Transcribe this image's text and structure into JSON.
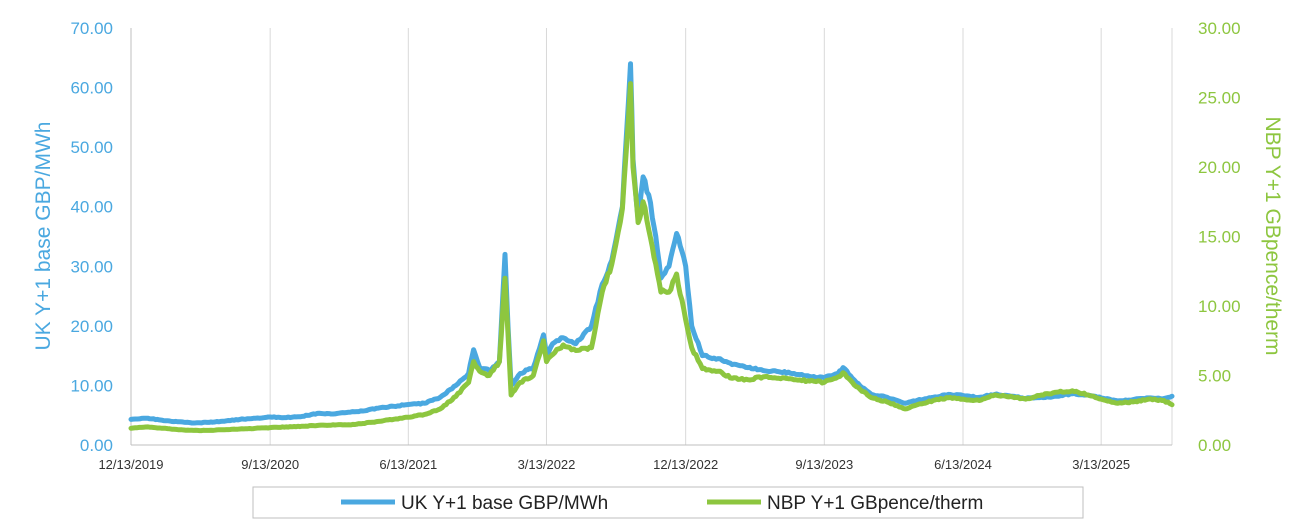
{
  "chart_data": {
    "type": "line",
    "title": "",
    "xlabel": "",
    "grid": "vertical gridlines only",
    "legend_position": "bottom",
    "x_tick_labels": [
      "12/13/2019",
      "9/13/2020",
      "6/13/2021",
      "3/13/2022",
      "12/13/2022",
      "9/13/2023",
      "6/13/2024",
      "3/13/2025"
    ],
    "x_range": [
      "12/13/2019",
      "7/31/2025"
    ],
    "ylabel_left": "UK Y+1 base GBP/MWh",
    "ylabel_right": "NBP Y+1 GBpence/therm",
    "ylim_left": [
      0,
      70
    ],
    "ylim_right": [
      0,
      30
    ],
    "yticks_left": [
      "0.00",
      "10.00",
      "20.00",
      "30.00",
      "40.00",
      "50.00",
      "60.00",
      "70.00"
    ],
    "yticks_right": [
      "0.00",
      "5.00",
      "10.00",
      "15.00",
      "20.00",
      "25.00",
      "30.00"
    ],
    "series": [
      {
        "name": "UK Y+1 base GBP/MWh",
        "axis": "left",
        "color": "#4aa8e0",
        "points": [
          [
            "2019-12-13",
            4.3
          ],
          [
            "2020-01-15",
            4.5
          ],
          [
            "2020-02-15",
            4.1
          ],
          [
            "2020-03-15",
            3.9
          ],
          [
            "2020-04-15",
            3.7
          ],
          [
            "2020-05-15",
            3.8
          ],
          [
            "2020-06-15",
            4.0
          ],
          [
            "2020-07-15",
            4.3
          ],
          [
            "2020-08-15",
            4.5
          ],
          [
            "2020-09-13",
            4.7
          ],
          [
            "2020-10-15",
            4.6
          ],
          [
            "2020-11-15",
            4.8
          ],
          [
            "2020-12-15",
            5.3
          ],
          [
            "2021-01-15",
            5.2
          ],
          [
            "2021-02-15",
            5.5
          ],
          [
            "2021-03-15",
            5.7
          ],
          [
            "2021-04-15",
            6.2
          ],
          [
            "2021-05-15",
            6.5
          ],
          [
            "2021-06-13",
            6.8
          ],
          [
            "2021-07-15",
            7.0
          ],
          [
            "2021-08-15",
            8.0
          ],
          [
            "2021-09-15",
            10.0
          ],
          [
            "2021-10-10",
            12.0
          ],
          [
            "2021-10-20",
            16.0
          ],
          [
            "2021-11-01",
            13.0
          ],
          [
            "2021-11-20",
            12.5
          ],
          [
            "2021-12-10",
            14.0
          ],
          [
            "2021-12-21",
            32.0
          ],
          [
            "2021-12-27",
            20.0
          ],
          [
            "2022-01-02",
            10.0
          ],
          [
            "2022-01-20",
            12.0
          ],
          [
            "2022-02-15",
            13.0
          ],
          [
            "2022-03-07",
            18.5
          ],
          [
            "2022-03-13",
            15.0
          ],
          [
            "2022-03-25",
            17.0
          ],
          [
            "2022-04-15",
            18.0
          ],
          [
            "2022-05-10",
            17.0
          ],
          [
            "2022-06-10",
            20.0
          ],
          [
            "2022-07-01",
            27.0
          ],
          [
            "2022-07-20",
            31.0
          ],
          [
            "2022-08-10",
            40.0
          ],
          [
            "2022-08-26",
            64.0
          ],
          [
            "2022-08-31",
            48.0
          ],
          [
            "2022-09-10",
            38.0
          ],
          [
            "2022-09-20",
            45.0
          ],
          [
            "2022-10-01",
            42.0
          ],
          [
            "2022-10-15",
            35.0
          ],
          [
            "2022-10-25",
            28.0
          ],
          [
            "2022-11-10",
            30.0
          ],
          [
            "2022-11-25",
            35.5
          ],
          [
            "2022-12-13",
            30.0
          ],
          [
            "2022-12-25",
            20.0
          ],
          [
            "2023-01-15",
            15.0
          ],
          [
            "2023-02-15",
            14.5
          ],
          [
            "2023-03-15",
            13.5
          ],
          [
            "2023-04-15",
            13.0
          ],
          [
            "2023-05-15",
            12.5
          ],
          [
            "2023-06-15",
            12.3
          ],
          [
            "2023-07-15",
            12.0
          ],
          [
            "2023-08-15",
            11.5
          ],
          [
            "2023-09-13",
            11.3
          ],
          [
            "2023-10-10",
            12.0
          ],
          [
            "2023-10-20",
            13.0
          ],
          [
            "2023-11-15",
            10.5
          ],
          [
            "2023-12-15",
            8.5
          ],
          [
            "2024-01-15",
            8.0
          ],
          [
            "2024-02-20",
            7.0
          ],
          [
            "2024-03-15",
            7.5
          ],
          [
            "2024-04-15",
            8.0
          ],
          [
            "2024-05-15",
            8.5
          ],
          [
            "2024-06-13",
            8.3
          ],
          [
            "2024-07-15",
            8.0
          ],
          [
            "2024-08-15",
            8.5
          ],
          [
            "2024-09-15",
            8.2
          ],
          [
            "2024-10-15",
            7.8
          ],
          [
            "2024-11-15",
            8.0
          ],
          [
            "2024-12-15",
            8.2
          ],
          [
            "2025-01-15",
            8.6
          ],
          [
            "2025-02-15",
            8.4
          ],
          [
            "2025-03-13",
            7.9
          ],
          [
            "2025-04-15",
            7.4
          ],
          [
            "2025-05-15",
            7.6
          ],
          [
            "2025-06-15",
            7.9
          ],
          [
            "2025-07-15",
            7.8
          ],
          [
            "2025-07-31",
            8.2
          ]
        ]
      },
      {
        "name": "NBP Y+1 GBpence/therm",
        "axis": "right",
        "color": "#8dc63f",
        "points": [
          [
            "2019-12-13",
            1.2
          ],
          [
            "2020-01-15",
            1.3
          ],
          [
            "2020-02-15",
            1.2
          ],
          [
            "2020-03-15",
            1.1
          ],
          [
            "2020-04-15",
            1.05
          ],
          [
            "2020-05-15",
            1.05
          ],
          [
            "2020-06-15",
            1.1
          ],
          [
            "2020-07-15",
            1.15
          ],
          [
            "2020-08-15",
            1.2
          ],
          [
            "2020-09-13",
            1.25
          ],
          [
            "2020-10-15",
            1.3
          ],
          [
            "2020-11-15",
            1.35
          ],
          [
            "2020-12-15",
            1.4
          ],
          [
            "2021-01-15",
            1.45
          ],
          [
            "2021-02-15",
            1.45
          ],
          [
            "2021-03-15",
            1.55
          ],
          [
            "2021-04-15",
            1.7
          ],
          [
            "2021-05-15",
            1.85
          ],
          [
            "2021-06-13",
            2.0
          ],
          [
            "2021-07-15",
            2.2
          ],
          [
            "2021-08-15",
            2.6
          ],
          [
            "2021-09-15",
            3.5
          ],
          [
            "2021-10-10",
            4.5
          ],
          [
            "2021-10-20",
            6.0
          ],
          [
            "2021-11-01",
            5.3
          ],
          [
            "2021-11-20",
            5.0
          ],
          [
            "2021-12-10",
            6.0
          ],
          [
            "2021-12-21",
            12.0
          ],
          [
            "2021-12-27",
            8.0
          ],
          [
            "2022-01-02",
            3.6
          ],
          [
            "2022-01-20",
            4.5
          ],
          [
            "2022-02-15",
            5.0
          ],
          [
            "2022-03-07",
            7.5
          ],
          [
            "2022-03-13",
            6.0
          ],
          [
            "2022-03-25",
            6.5
          ],
          [
            "2022-04-15",
            7.2
          ],
          [
            "2022-05-10",
            6.8
          ],
          [
            "2022-06-10",
            7.0
          ],
          [
            "2022-07-01",
            11.0
          ],
          [
            "2022-07-20",
            13.0
          ],
          [
            "2022-08-10",
            17.0
          ],
          [
            "2022-08-26",
            26.0
          ],
          [
            "2022-08-31",
            20.0
          ],
          [
            "2022-09-10",
            16.0
          ],
          [
            "2022-09-20",
            17.5
          ],
          [
            "2022-10-01",
            15.5
          ],
          [
            "2022-10-15",
            13.0
          ],
          [
            "2022-10-25",
            11.0
          ],
          [
            "2022-11-10",
            11.0
          ],
          [
            "2022-11-25",
            12.3
          ],
          [
            "2022-12-13",
            9.0
          ],
          [
            "2022-12-25",
            7.0
          ],
          [
            "2023-01-15",
            5.5
          ],
          [
            "2023-02-15",
            5.3
          ],
          [
            "2023-03-15",
            4.8
          ],
          [
            "2023-04-15",
            4.7
          ],
          [
            "2023-05-15",
            4.9
          ],
          [
            "2023-06-15",
            4.8
          ],
          [
            "2023-07-15",
            4.7
          ],
          [
            "2023-08-15",
            4.6
          ],
          [
            "2023-09-13",
            4.5
          ],
          [
            "2023-10-10",
            4.9
          ],
          [
            "2023-10-20",
            5.2
          ],
          [
            "2023-11-15",
            4.2
          ],
          [
            "2023-12-15",
            3.4
          ],
          [
            "2024-01-15",
            3.1
          ],
          [
            "2024-02-20",
            2.6
          ],
          [
            "2024-03-15",
            2.9
          ],
          [
            "2024-04-15",
            3.2
          ],
          [
            "2024-05-15",
            3.4
          ],
          [
            "2024-06-13",
            3.3
          ],
          [
            "2024-07-15",
            3.2
          ],
          [
            "2024-08-15",
            3.6
          ],
          [
            "2024-09-15",
            3.5
          ],
          [
            "2024-10-15",
            3.3
          ],
          [
            "2024-11-15",
            3.6
          ],
          [
            "2024-12-15",
            3.8
          ],
          [
            "2025-01-15",
            3.9
          ],
          [
            "2025-02-15",
            3.6
          ],
          [
            "2025-03-13",
            3.3
          ],
          [
            "2025-04-15",
            3.0
          ],
          [
            "2025-05-15",
            3.1
          ],
          [
            "2025-06-15",
            3.3
          ],
          [
            "2025-07-15",
            3.2
          ],
          [
            "2025-07-31",
            2.9
          ]
        ]
      }
    ]
  }
}
